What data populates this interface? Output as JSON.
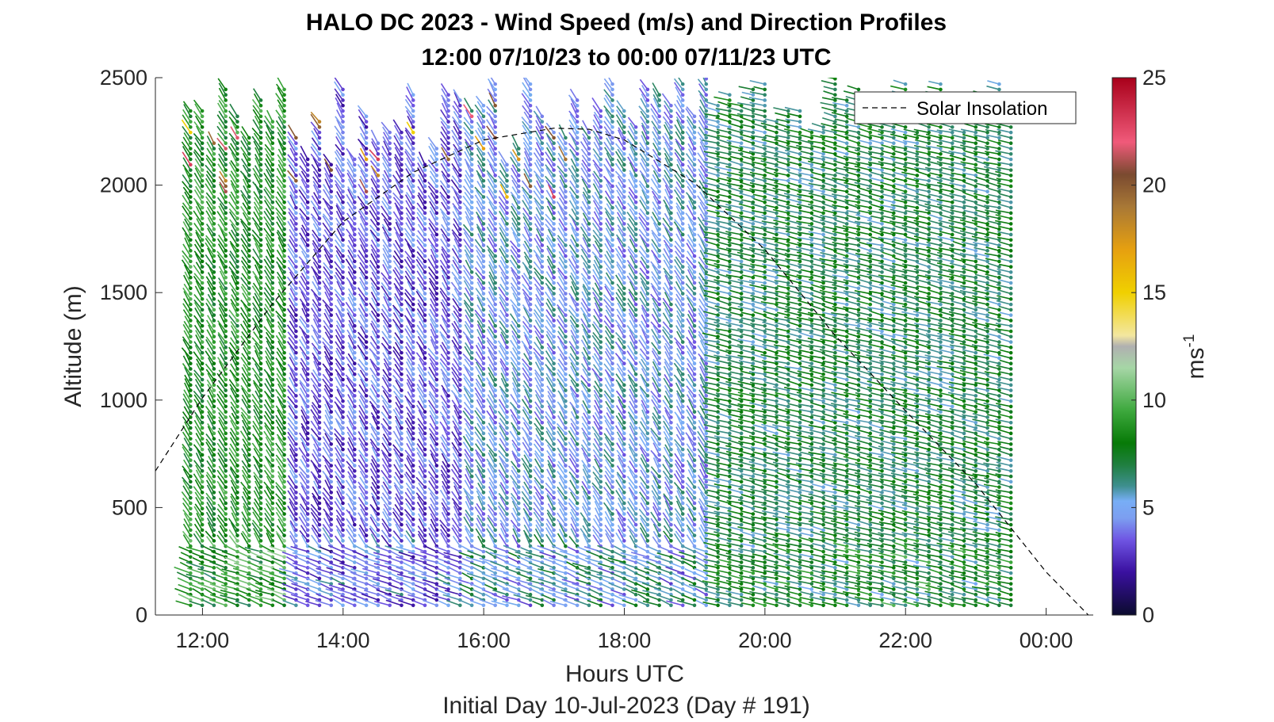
{
  "chart_data": {
    "type": "quiver",
    "title_line1": "HALO DC 2023 - Wind Speed (m/s) and Direction Profiles",
    "title_line2": "12:00 07/10/23 to 00:00 07/11/23  UTC",
    "xlabel": "Hours UTC",
    "ylabel": "Altitude (m)",
    "subtitle": "Initial Day 10-Jul-2023 (Day # 191)",
    "xlim": [
      11.33,
      24.67
    ],
    "ylim": [
      0,
      2500
    ],
    "x_ticks": [
      12,
      14,
      16,
      18,
      20,
      22,
      24
    ],
    "x_tick_labels": [
      "12:00",
      "14:00",
      "16:00",
      "18:00",
      "20:00",
      "22:00",
      "00:00"
    ],
    "y_ticks": [
      0,
      500,
      1000,
      1500,
      2000,
      2500
    ],
    "y_tick_labels": [
      "0",
      "500",
      "1000",
      "1500",
      "2000",
      "2500"
    ],
    "colorbar": {
      "label": "ms",
      "label_exponent": "-1",
      "range": [
        0,
        25
      ],
      "ticks": [
        0,
        5,
        10,
        15,
        20,
        25
      ],
      "tick_labels": [
        "0",
        "5",
        "10",
        "15",
        "20",
        "25"
      ],
      "stops": [
        {
          "v": 0,
          "color": "#0b0b2e"
        },
        {
          "v": 2,
          "color": "#3a10a0"
        },
        {
          "v": 3.5,
          "color": "#6f55e3"
        },
        {
          "v": 4.5,
          "color": "#7c9ef0"
        },
        {
          "v": 5.3,
          "color": "#78aef6"
        },
        {
          "v": 6,
          "color": "#3e8f8f"
        },
        {
          "v": 7,
          "color": "#1f7f3f"
        },
        {
          "v": 8,
          "color": "#077a07"
        },
        {
          "v": 9.5,
          "color": "#3da83d"
        },
        {
          "v": 11.5,
          "color": "#a6d6a6"
        },
        {
          "v": 12.5,
          "color": "#b0b0b0"
        },
        {
          "v": 13,
          "color": "#f3e7a0"
        },
        {
          "v": 15,
          "color": "#f0d000"
        },
        {
          "v": 17,
          "color": "#e6a010"
        },
        {
          "v": 19,
          "color": "#a87836"
        },
        {
          "v": 20.5,
          "color": "#7a4a30"
        },
        {
          "v": 22,
          "color": "#f05a7a"
        },
        {
          "v": 25,
          "color": "#a8001a"
        }
      ]
    },
    "legend": {
      "label": "Solar Insolation",
      "placement": "top-right"
    },
    "solar_insolation_curve": {
      "x": [
        11.33,
        12,
        13,
        14,
        15,
        16,
        17,
        17.5,
        18,
        19,
        20,
        21,
        22,
        23,
        24,
        24.6
      ],
      "y": [
        670,
        1010,
        1450,
        1830,
        2060,
        2210,
        2265,
        2260,
        2210,
        2010,
        1700,
        1300,
        950,
        610,
        200,
        0
      ]
    },
    "wind_profiles": {
      "start_hour": 11.83,
      "end_hour": 23.5,
      "profile_step_hours": 0.1667,
      "altitude_step_m": 25,
      "min_altitude_m": 45,
      "regimes": [
        {
          "from_hour": 11.8,
          "to_hour": 13.2,
          "speed_ms": 8.5,
          "direction": "from north-west, turning at low levels"
        },
        {
          "from_hour": 13.2,
          "to_hour": 15.8,
          "speed_ms": 3.5,
          "direction": "from north-west, turning at low levels"
        },
        {
          "from_hour": 15.8,
          "to_hour": 19.2,
          "speed_ms": 5,
          "direction": "from north-west, turning at low levels"
        },
        {
          "from_hour": 19.2,
          "to_hour": 23.5,
          "speed_ms": 7,
          "direction": "from west-north-west"
        }
      ]
    }
  }
}
